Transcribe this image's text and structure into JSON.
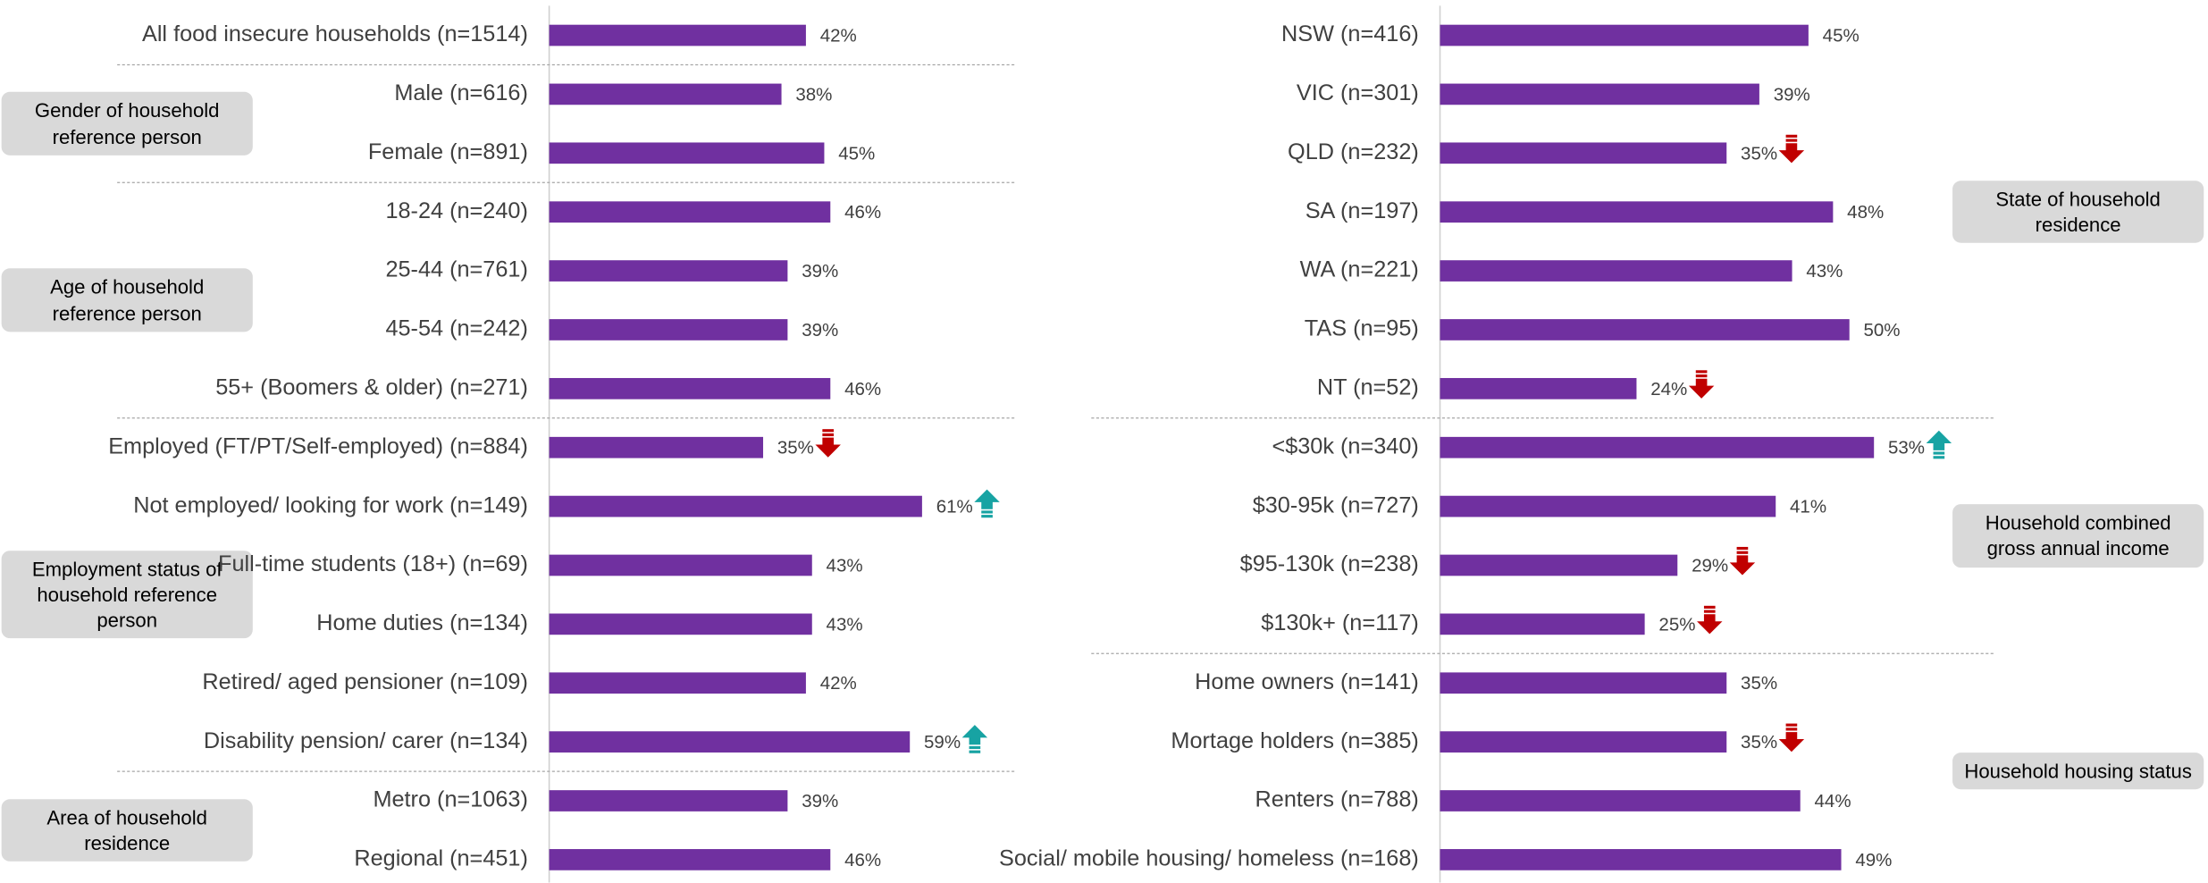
{
  "chart_data": [
    {
      "type": "bar",
      "categories": [
        "All food insecure households (n=1514)",
        "Male (n=616)",
        "Female (n=891)",
        "18-24 (n=240)",
        "25-44 (n=761)",
        "45-54 (n=242)",
        "55+ (Boomers & older) (n=271)",
        "Employed (FT/PT/Self-employed) (n=884)",
        "Not employed/ looking for work (n=149)",
        "Full-time students (18+) (n=69)",
        "Home duties (n=134)",
        "Retired/ aged pensioner (n=109)",
        "Disability pension/ carer (n=134)",
        "Metro (n=1063)",
        "Regional (n=451)"
      ],
      "values": [
        42,
        38,
        45,
        46,
        39,
        39,
        46,
        35,
        61,
        43,
        43,
        42,
        59,
        39,
        46
      ],
      "value_labels": [
        "42%",
        "38%",
        "45%",
        "46%",
        "39%",
        "39%",
        "46%",
        "35%",
        "61%",
        "43%",
        "43%",
        "42%",
        "59%",
        "39%",
        "46%"
      ],
      "significance": [
        null,
        null,
        null,
        null,
        null,
        null,
        null,
        "down",
        "up",
        null,
        null,
        null,
        "up",
        null,
        null
      ],
      "groups": [
        {
          "label": "Gender of household reference person",
          "rows": [
            1,
            2
          ]
        },
        {
          "label": "Age of household reference person",
          "rows": [
            3,
            6
          ]
        },
        {
          "label": "Employment status of household reference person",
          "rows": [
            7,
            12
          ]
        },
        {
          "label": "Area of household residence",
          "rows": [
            13,
            14
          ]
        }
      ],
      "color": "#7030a0",
      "xlim": [
        0,
        100
      ]
    },
    {
      "type": "bar",
      "categories": [
        "NSW (n=416)",
        "VIC (n=301)",
        "QLD (n=232)",
        "SA (n=197)",
        "WA (n=221)",
        "TAS (n=95)",
        "NT (n=52)",
        "<$30k (n=340)",
        "$30-95k (n=727)",
        "$95-130k (n=238)",
        "$130k+ (n=117)",
        "Home owners (n=141)",
        "Mortage holders (n=385)",
        "Renters (n=788)",
        "Social/ mobile housing/ homeless (n=168)"
      ],
      "values": [
        45,
        39,
        35,
        48,
        43,
        50,
        24,
        53,
        41,
        29,
        25,
        35,
        35,
        44,
        49
      ],
      "value_labels": [
        "45%",
        "39%",
        "35%",
        "48%",
        "43%",
        "50%",
        "24%",
        "53%",
        "41%",
        "29%",
        "25%",
        "35%",
        "35%",
        "44%",
        "49%"
      ],
      "significance": [
        null,
        null,
        "down",
        null,
        null,
        null,
        "down",
        "up",
        null,
        "down",
        "down",
        null,
        "down",
        null,
        null
      ],
      "groups": [
        {
          "label": "State of household residence",
          "rows": [
            0,
            6
          ]
        },
        {
          "label": "Household combined gross annual income",
          "rows": [
            7,
            10
          ]
        },
        {
          "label": "Household housing status",
          "rows": [
            11,
            14
          ]
        }
      ],
      "color": "#7030a0",
      "xlim": [
        0,
        100
      ]
    }
  ]
}
